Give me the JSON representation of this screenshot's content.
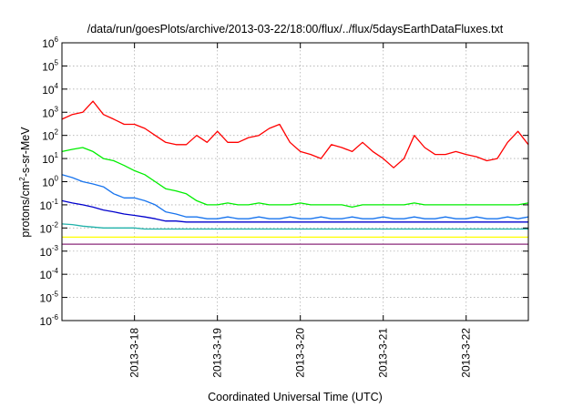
{
  "chart_data": {
    "type": "line",
    "title": "/data/run/goesPlots/archive/2013-03-22/18:00/flux/../flux/5daysEarthDataFluxes.txt",
    "xlabel": "Coordinated Universal Time (UTC)",
    "ylabel": {
      "prefix": "protons/cm",
      "sup": "2",
      "suffix": "-s-sr-MeV"
    },
    "yscale": "log",
    "ylim": [
      1e-06,
      1000000.0
    ],
    "xlim": [
      "2013-03-17T03:00",
      "2013-03-22T18:00"
    ],
    "grid": true,
    "x_ticks": [
      {
        "label": "2013-3-18",
        "date": "2013-03-18T00:00"
      },
      {
        "label": "2013-3-19",
        "date": "2013-03-19T00:00"
      },
      {
        "label": "2013-3-20",
        "date": "2013-03-20T00:00"
      },
      {
        "label": "2013-3-21",
        "date": "2013-03-21T00:00"
      },
      {
        "label": "2013-3-22",
        "date": "2013-03-22T00:00"
      }
    ],
    "y_ticks": [
      {
        "base": "10",
        "exp": "-6"
      },
      {
        "base": "10",
        "exp": "-5"
      },
      {
        "base": "10",
        "exp": "-4"
      },
      {
        "base": "10",
        "exp": "-3"
      },
      {
        "base": "10",
        "exp": "-2"
      },
      {
        "base": "10",
        "exp": "-1"
      },
      {
        "base": "10",
        "exp": "0"
      },
      {
        "base": "10",
        "exp": "1"
      },
      {
        "base": "10",
        "exp": "2"
      },
      {
        "base": "10",
        "exp": "3"
      },
      {
        "base": "10",
        "exp": "4"
      },
      {
        "base": "10",
        "exp": "5"
      },
      {
        "base": "10",
        "exp": "6"
      }
    ],
    "series": [
      {
        "color": "#ff0000",
        "x": [
          "2013-03-17T03:00",
          "2013-03-17T06:00",
          "2013-03-17T09:00",
          "2013-03-17T12:00",
          "2013-03-17T15:00",
          "2013-03-17T18:00",
          "2013-03-17T21:00",
          "2013-03-18T00:00",
          "2013-03-18T03:00",
          "2013-03-18T06:00",
          "2013-03-18T09:00",
          "2013-03-18T12:00",
          "2013-03-18T15:00",
          "2013-03-18T18:00",
          "2013-03-18T21:00",
          "2013-03-19T00:00",
          "2013-03-19T03:00",
          "2013-03-19T06:00",
          "2013-03-19T09:00",
          "2013-03-19T12:00",
          "2013-03-19T15:00",
          "2013-03-19T18:00",
          "2013-03-19T21:00",
          "2013-03-20T00:00",
          "2013-03-20T03:00",
          "2013-03-20T06:00",
          "2013-03-20T09:00",
          "2013-03-20T12:00",
          "2013-03-20T15:00",
          "2013-03-20T18:00",
          "2013-03-20T21:00",
          "2013-03-21T00:00",
          "2013-03-21T03:00",
          "2013-03-21T06:00",
          "2013-03-21T09:00",
          "2013-03-21T12:00",
          "2013-03-21T15:00",
          "2013-03-21T18:00",
          "2013-03-21T21:00",
          "2013-03-22T00:00",
          "2013-03-22T03:00",
          "2013-03-22T06:00",
          "2013-03-22T09:00",
          "2013-03-22T12:00",
          "2013-03-22T15:00",
          "2013-03-22T18:00"
        ],
        "values": [
          500,
          800,
          1000,
          3000,
          800,
          500,
          300,
          300,
          200,
          100,
          50,
          40,
          40,
          100,
          50,
          150,
          50,
          50,
          80,
          100,
          200,
          300,
          50,
          20,
          15,
          10,
          40,
          30,
          20,
          50,
          20,
          10,
          4,
          10,
          100,
          30,
          15,
          15,
          20,
          15,
          12,
          8,
          10,
          50,
          150,
          40
        ]
      },
      {
        "color": "#00ee00",
        "x": [
          "2013-03-17T03:00",
          "2013-03-17T06:00",
          "2013-03-17T09:00",
          "2013-03-17T12:00",
          "2013-03-17T15:00",
          "2013-03-17T18:00",
          "2013-03-17T21:00",
          "2013-03-18T00:00",
          "2013-03-18T03:00",
          "2013-03-18T06:00",
          "2013-03-18T09:00",
          "2013-03-18T12:00",
          "2013-03-18T15:00",
          "2013-03-18T18:00",
          "2013-03-18T21:00",
          "2013-03-19T00:00",
          "2013-03-19T03:00",
          "2013-03-19T06:00",
          "2013-03-19T09:00",
          "2013-03-19T12:00",
          "2013-03-19T15:00",
          "2013-03-19T18:00",
          "2013-03-19T21:00",
          "2013-03-20T00:00",
          "2013-03-20T03:00",
          "2013-03-20T06:00",
          "2013-03-20T09:00",
          "2013-03-20T12:00",
          "2013-03-20T15:00",
          "2013-03-20T18:00",
          "2013-03-20T21:00",
          "2013-03-21T00:00",
          "2013-03-21T03:00",
          "2013-03-21T06:00",
          "2013-03-21T09:00",
          "2013-03-21T12:00",
          "2013-03-21T15:00",
          "2013-03-21T18:00",
          "2013-03-21T21:00",
          "2013-03-22T00:00",
          "2013-03-22T03:00",
          "2013-03-22T06:00",
          "2013-03-22T09:00",
          "2013-03-22T12:00",
          "2013-03-22T15:00",
          "2013-03-22T18:00"
        ],
        "values": [
          20,
          25,
          30,
          20,
          10,
          8,
          5,
          3,
          2,
          1,
          0.5,
          0.4,
          0.3,
          0.15,
          0.1,
          0.1,
          0.12,
          0.1,
          0.1,
          0.12,
          0.1,
          0.1,
          0.1,
          0.12,
          0.1,
          0.1,
          0.1,
          0.1,
          0.08,
          0.1,
          0.1,
          0.1,
          0.1,
          0.1,
          0.12,
          0.1,
          0.1,
          0.1,
          0.1,
          0.1,
          0.1,
          0.1,
          0.1,
          0.1,
          0.1,
          0.12
        ]
      },
      {
        "color": "#1874ee",
        "x": [
          "2013-03-17T03:00",
          "2013-03-17T06:00",
          "2013-03-17T09:00",
          "2013-03-17T12:00",
          "2013-03-17T15:00",
          "2013-03-17T18:00",
          "2013-03-17T21:00",
          "2013-03-18T00:00",
          "2013-03-18T03:00",
          "2013-03-18T06:00",
          "2013-03-18T09:00",
          "2013-03-18T12:00",
          "2013-03-18T15:00",
          "2013-03-18T18:00",
          "2013-03-18T21:00",
          "2013-03-19T00:00",
          "2013-03-19T03:00",
          "2013-03-19T06:00",
          "2013-03-19T09:00",
          "2013-03-19T12:00",
          "2013-03-19T15:00",
          "2013-03-19T18:00",
          "2013-03-19T21:00",
          "2013-03-20T00:00",
          "2013-03-20T03:00",
          "2013-03-20T06:00",
          "2013-03-20T09:00",
          "2013-03-20T12:00",
          "2013-03-20T15:00",
          "2013-03-20T18:00",
          "2013-03-20T21:00",
          "2013-03-21T00:00",
          "2013-03-21T03:00",
          "2013-03-21T06:00",
          "2013-03-21T09:00",
          "2013-03-21T12:00",
          "2013-03-21T15:00",
          "2013-03-21T18:00",
          "2013-03-21T21:00",
          "2013-03-22T00:00",
          "2013-03-22T03:00",
          "2013-03-22T06:00",
          "2013-03-22T09:00",
          "2013-03-22T12:00",
          "2013-03-22T15:00",
          "2013-03-22T18:00"
        ],
        "values": [
          2,
          1.5,
          1,
          0.8,
          0.6,
          0.3,
          0.2,
          0.2,
          0.15,
          0.1,
          0.05,
          0.04,
          0.03,
          0.03,
          0.025,
          0.025,
          0.03,
          0.025,
          0.025,
          0.03,
          0.025,
          0.025,
          0.03,
          0.025,
          0.025,
          0.03,
          0.025,
          0.025,
          0.03,
          0.025,
          0.025,
          0.03,
          0.025,
          0.025,
          0.03,
          0.025,
          0.025,
          0.03,
          0.025,
          0.025,
          0.03,
          0.025,
          0.025,
          0.03,
          0.025,
          0.03
        ]
      },
      {
        "color": "#0000cd",
        "x": [
          "2013-03-17T03:00",
          "2013-03-17T06:00",
          "2013-03-17T09:00",
          "2013-03-17T12:00",
          "2013-03-17T15:00",
          "2013-03-17T18:00",
          "2013-03-17T21:00",
          "2013-03-18T00:00",
          "2013-03-18T03:00",
          "2013-03-18T06:00",
          "2013-03-18T09:00",
          "2013-03-18T12:00",
          "2013-03-18T15:00",
          "2013-03-18T18:00",
          "2013-03-18T21:00",
          "2013-03-19T00:00",
          "2013-03-19T03:00",
          "2013-03-19T06:00",
          "2013-03-19T09:00",
          "2013-03-19T12:00",
          "2013-03-19T15:00",
          "2013-03-19T18:00",
          "2013-03-19T21:00",
          "2013-03-20T00:00",
          "2013-03-20T03:00",
          "2013-03-20T06:00",
          "2013-03-20T09:00",
          "2013-03-20T12:00",
          "2013-03-20T15:00",
          "2013-03-20T18:00",
          "2013-03-20T21:00",
          "2013-03-21T00:00",
          "2013-03-21T03:00",
          "2013-03-21T06:00",
          "2013-03-21T09:00",
          "2013-03-21T12:00",
          "2013-03-21T15:00",
          "2013-03-21T18:00",
          "2013-03-21T21:00",
          "2013-03-22T00:00",
          "2013-03-22T03:00",
          "2013-03-22T06:00",
          "2013-03-22T09:00",
          "2013-03-22T12:00",
          "2013-03-22T15:00",
          "2013-03-22T18:00"
        ],
        "values": [
          0.15,
          0.12,
          0.1,
          0.08,
          0.06,
          0.05,
          0.04,
          0.035,
          0.03,
          0.025,
          0.02,
          0.02,
          0.018,
          0.018,
          0.018,
          0.018,
          0.018,
          0.018,
          0.018,
          0.018,
          0.018,
          0.018,
          0.018,
          0.018,
          0.018,
          0.018,
          0.018,
          0.018,
          0.018,
          0.018,
          0.018,
          0.018,
          0.018,
          0.018,
          0.018,
          0.018,
          0.018,
          0.018,
          0.018,
          0.018,
          0.018,
          0.018,
          0.018,
          0.018,
          0.018,
          0.018
        ]
      },
      {
        "color": "#20b2aa",
        "x": [
          "2013-03-17T03:00",
          "2013-03-17T06:00",
          "2013-03-17T09:00",
          "2013-03-17T12:00",
          "2013-03-17T15:00",
          "2013-03-17T18:00",
          "2013-03-17T21:00",
          "2013-03-18T00:00",
          "2013-03-18T03:00",
          "2013-03-18T06:00",
          "2013-03-18T09:00",
          "2013-03-18T12:00",
          "2013-03-18T15:00",
          "2013-03-18T18:00",
          "2013-03-18T21:00",
          "2013-03-19T00:00",
          "2013-03-19T03:00",
          "2013-03-19T06:00",
          "2013-03-19T09:00",
          "2013-03-19T12:00",
          "2013-03-19T15:00",
          "2013-03-19T18:00",
          "2013-03-19T21:00",
          "2013-03-20T00:00",
          "2013-03-20T03:00",
          "2013-03-20T06:00",
          "2013-03-20T09:00",
          "2013-03-20T12:00",
          "2013-03-20T15:00",
          "2013-03-20T18:00",
          "2013-03-20T21:00",
          "2013-03-21T00:00",
          "2013-03-21T03:00",
          "2013-03-21T06:00",
          "2013-03-21T09:00",
          "2013-03-21T12:00",
          "2013-03-21T15:00",
          "2013-03-21T18:00",
          "2013-03-21T21:00",
          "2013-03-22T00:00",
          "2013-03-22T03:00",
          "2013-03-22T06:00",
          "2013-03-22T09:00",
          "2013-03-22T12:00",
          "2013-03-22T15:00",
          "2013-03-22T18:00"
        ],
        "values": [
          0.015,
          0.014,
          0.012,
          0.011,
          0.01,
          0.01,
          0.01,
          0.01,
          0.009,
          0.009,
          0.009,
          0.009,
          0.009,
          0.009,
          0.009,
          0.009,
          0.009,
          0.009,
          0.009,
          0.009,
          0.009,
          0.009,
          0.009,
          0.009,
          0.009,
          0.009,
          0.009,
          0.009,
          0.009,
          0.009,
          0.009,
          0.009,
          0.009,
          0.009,
          0.009,
          0.009,
          0.009,
          0.009,
          0.009,
          0.009,
          0.009,
          0.009,
          0.009,
          0.009,
          0.009,
          0.009
        ]
      },
      {
        "color": "#ffff00",
        "x": [
          "2013-03-17T03:00",
          "2013-03-17T06:00",
          "2013-03-17T09:00",
          "2013-03-17T12:00",
          "2013-03-17T15:00",
          "2013-03-17T18:00",
          "2013-03-17T21:00",
          "2013-03-18T00:00",
          "2013-03-18T03:00",
          "2013-03-18T06:00",
          "2013-03-18T09:00",
          "2013-03-18T12:00",
          "2013-03-18T15:00",
          "2013-03-18T18:00",
          "2013-03-18T21:00",
          "2013-03-19T00:00",
          "2013-03-19T03:00",
          "2013-03-19T06:00",
          "2013-03-19T09:00",
          "2013-03-19T12:00",
          "2013-03-19T15:00",
          "2013-03-19T18:00",
          "2013-03-19T21:00",
          "2013-03-20T00:00",
          "2013-03-20T03:00",
          "2013-03-20T06:00",
          "2013-03-20T09:00",
          "2013-03-20T12:00",
          "2013-03-20T15:00",
          "2013-03-20T18:00",
          "2013-03-20T21:00",
          "2013-03-21T00:00",
          "2013-03-21T03:00",
          "2013-03-21T06:00",
          "2013-03-21T09:00",
          "2013-03-21T12:00",
          "2013-03-21T15:00",
          "2013-03-21T18:00",
          "2013-03-21T21:00",
          "2013-03-22T00:00",
          "2013-03-22T03:00",
          "2013-03-22T06:00",
          "2013-03-22T09:00",
          "2013-03-22T12:00",
          "2013-03-22T15:00",
          "2013-03-22T18:00"
        ],
        "values": [
          0.004,
          0.004,
          0.004,
          0.004,
          0.004,
          0.004,
          0.004,
          0.004,
          0.004,
          0.004,
          0.004,
          0.004,
          0.004,
          0.004,
          0.004,
          0.004,
          0.004,
          0.004,
          0.004,
          0.004,
          0.004,
          0.004,
          0.004,
          0.004,
          0.004,
          0.004,
          0.004,
          0.004,
          0.004,
          0.004,
          0.004,
          0.004,
          0.004,
          0.004,
          0.004,
          0.004,
          0.004,
          0.004,
          0.004,
          0.004,
          0.004,
          0.004,
          0.004,
          0.004,
          0.004,
          0.004
        ]
      },
      {
        "color": "#8b2a7a",
        "x": [
          "2013-03-17T03:00",
          "2013-03-17T06:00",
          "2013-03-17T09:00",
          "2013-03-17T12:00",
          "2013-03-17T15:00",
          "2013-03-17T18:00",
          "2013-03-17T21:00",
          "2013-03-18T00:00",
          "2013-03-18T03:00",
          "2013-03-18T06:00",
          "2013-03-18T09:00",
          "2013-03-18T12:00",
          "2013-03-18T15:00",
          "2013-03-18T18:00",
          "2013-03-18T21:00",
          "2013-03-19T00:00",
          "2013-03-19T03:00",
          "2013-03-19T06:00",
          "2013-03-19T09:00",
          "2013-03-19T12:00",
          "2013-03-19T15:00",
          "2013-03-19T18:00",
          "2013-03-19T21:00",
          "2013-03-20T00:00",
          "2013-03-20T03:00",
          "2013-03-20T06:00",
          "2013-03-20T09:00",
          "2013-03-20T12:00",
          "2013-03-20T15:00",
          "2013-03-20T18:00",
          "2013-03-20T21:00",
          "2013-03-21T00:00",
          "2013-03-21T03:00",
          "2013-03-21T06:00",
          "2013-03-21T09:00",
          "2013-03-21T12:00",
          "2013-03-21T15:00",
          "2013-03-21T18:00",
          "2013-03-21T21:00",
          "2013-03-22T00:00",
          "2013-03-22T03:00",
          "2013-03-22T06:00",
          "2013-03-22T09:00",
          "2013-03-22T12:00",
          "2013-03-22T15:00",
          "2013-03-22T18:00"
        ],
        "values": [
          0.002,
          0.002,
          0.002,
          0.002,
          0.002,
          0.002,
          0.002,
          0.002,
          0.002,
          0.002,
          0.002,
          0.002,
          0.002,
          0.002,
          0.002,
          0.002,
          0.002,
          0.002,
          0.002,
          0.002,
          0.002,
          0.002,
          0.002,
          0.002,
          0.002,
          0.002,
          0.002,
          0.002,
          0.002,
          0.002,
          0.002,
          0.002,
          0.002,
          0.002,
          0.002,
          0.002,
          0.002,
          0.002,
          0.002,
          0.002,
          0.002,
          0.002,
          0.002,
          0.002,
          0.002,
          0.002
        ]
      }
    ]
  }
}
